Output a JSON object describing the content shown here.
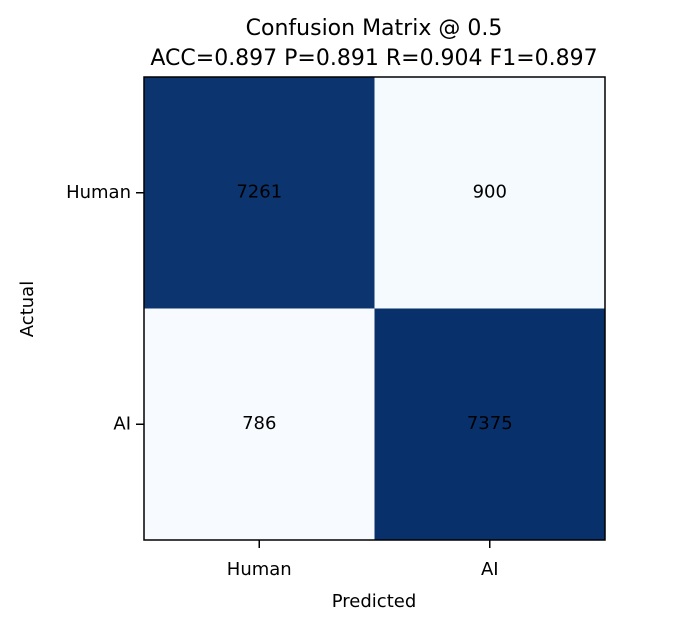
{
  "chart_data": {
    "type": "heatmap",
    "title": "Confusion Matrix @ 0.5",
    "subtitle": "ACC=0.897  P=0.891  R=0.904  F1=0.897",
    "xlabel": "Predicted",
    "ylabel": "Actual",
    "x_categories": [
      "Human",
      "AI"
    ],
    "y_categories": [
      "Human",
      "AI"
    ],
    "values": [
      [
        7261,
        900
      ],
      [
        786,
        7375
      ]
    ],
    "colormap": "Blues",
    "colors": {
      "high": "#08306b",
      "low": "#f7fbff",
      "mid_low": "#f2f7fd"
    },
    "colorbar": false,
    "grid": false
  }
}
